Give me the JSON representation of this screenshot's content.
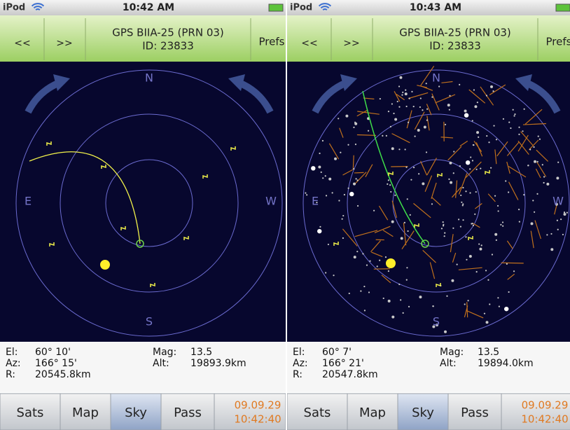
{
  "screens": [
    {
      "status": {
        "device": "iPod",
        "time": "10:42 AM"
      },
      "toolbar": {
        "prev": "<<",
        "next": ">>",
        "title": "GPS BIIA-25 (PRN 03)",
        "id": "ID: 23833",
        "prefs": "Prefs"
      },
      "sky": {
        "north": "N",
        "east": "E",
        "west": "W",
        "south": "S"
      },
      "info": {
        "el_label": "El:",
        "el": "60° 10'",
        "az_label": "Az:",
        "az": "166° 15'",
        "r_label": "R:",
        "r": "20545.8km",
        "mag_label": "Mag:",
        "mag": "13.5",
        "alt_label": "Alt:",
        "alt": "19893.9km"
      },
      "tabs": [
        "Sats",
        "Map",
        "Sky",
        "Pass"
      ],
      "date": "09.09.29",
      "clock": "10:42:40"
    },
    {
      "status": {
        "device": "iPod",
        "time": "10:43 AM"
      },
      "toolbar": {
        "prev": "<<",
        "next": ">>",
        "title": "GPS BIIA-25 (PRN 03)",
        "id": "ID: 23833",
        "prefs": "Prefs"
      },
      "sky": {
        "north": "N",
        "east": "E",
        "west": "W",
        "south": "S"
      },
      "info": {
        "el_label": "El:",
        "el": "60° 7'",
        "az_label": "Az:",
        "az": "166° 21'",
        "r_label": "R:",
        "r": "20547.8km",
        "mag_label": "Mag:",
        "mag": "13.5",
        "alt_label": "Alt:",
        "alt": "19894.0km"
      },
      "tabs": [
        "Sats",
        "Map",
        "Sky",
        "Pass"
      ],
      "date": "09.09.29",
      "clock": "10:42:40"
    }
  ]
}
